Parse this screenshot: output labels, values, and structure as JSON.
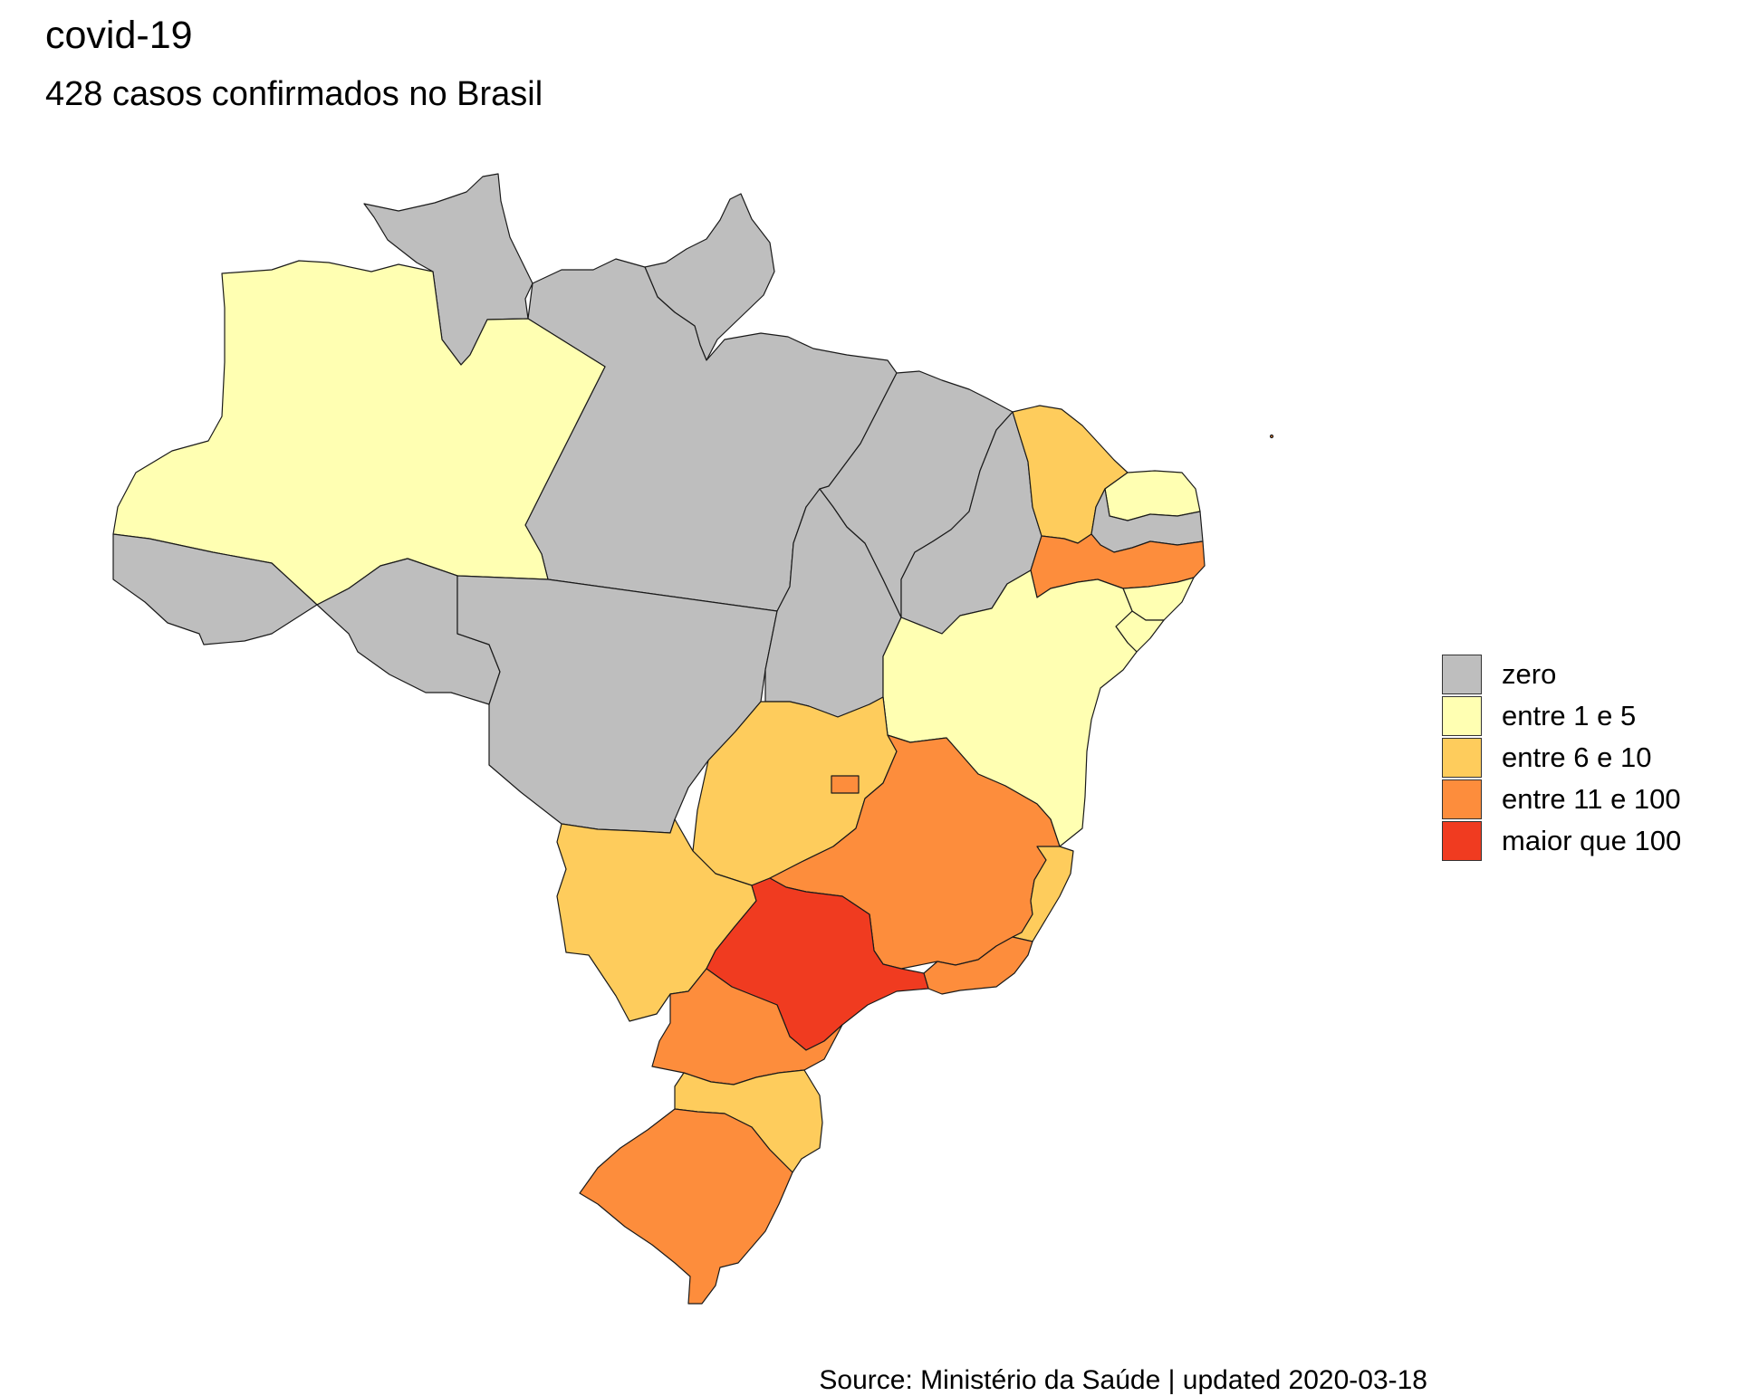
{
  "title": "covid-19",
  "subtitle": "428 casos confirmados no Brasil",
  "caption": "Source: Ministério da Saúde | updated 2020-03-18",
  "legend": [
    {
      "label": "zero",
      "color": "#bebebe"
    },
    {
      "label": "entre 1 e 5",
      "color": "#ffffb2"
    },
    {
      "label": "entre 6 e 10",
      "color": "#fecc5c"
    },
    {
      "label": "entre 11 e 100",
      "color": "#fd8d3c"
    },
    {
      "label": "maior que 100",
      "color": "#f03b20"
    }
  ],
  "states": [
    {
      "name": "RR",
      "category": 0
    },
    {
      "name": "AP",
      "category": 0
    },
    {
      "name": "AC",
      "category": 0
    },
    {
      "name": "RO",
      "category": 0
    },
    {
      "name": "MT",
      "category": 0
    },
    {
      "name": "PA",
      "category": 0
    },
    {
      "name": "TO",
      "category": 0
    },
    {
      "name": "MA",
      "category": 0
    },
    {
      "name": "PI",
      "category": 0
    },
    {
      "name": "PB",
      "category": 0
    },
    {
      "name": "AM",
      "category": 1
    },
    {
      "name": "BA",
      "category": 1
    },
    {
      "name": "RN",
      "category": 1
    },
    {
      "name": "AL",
      "category": 1
    },
    {
      "name": "SE",
      "category": 1
    },
    {
      "name": "CE",
      "category": 2
    },
    {
      "name": "GO",
      "category": 2
    },
    {
      "name": "MS",
      "category": 2
    },
    {
      "name": "ES",
      "category": 2
    },
    {
      "name": "SC",
      "category": 2
    },
    {
      "name": "PE",
      "category": 3
    },
    {
      "name": "MG",
      "category": 3
    },
    {
      "name": "RJ",
      "category": 3
    },
    {
      "name": "PR",
      "category": 3
    },
    {
      "name": "RS",
      "category": 3
    },
    {
      "name": "DF",
      "category": 3
    },
    {
      "name": "SP",
      "category": 4
    }
  ]
}
